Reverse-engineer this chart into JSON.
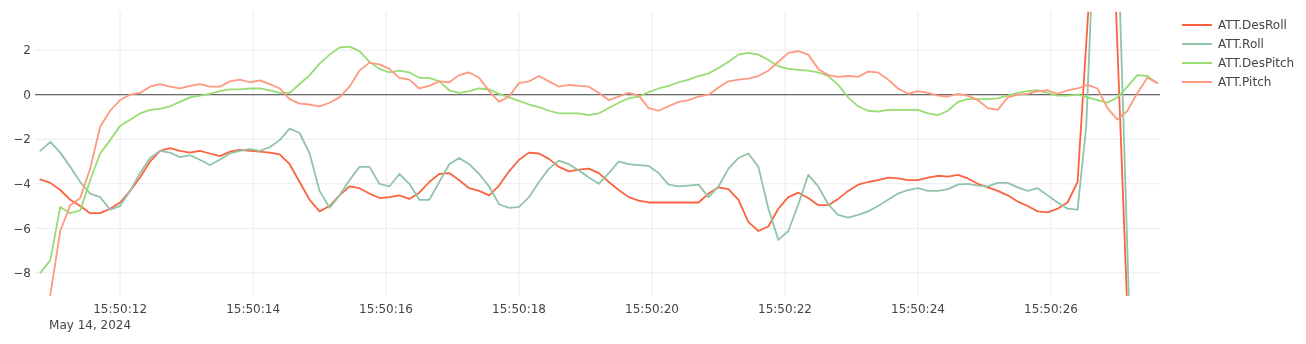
{
  "chart_data": {
    "type": "line",
    "x": [
      "2024-05-14T15:50:10.80",
      "2024-05-14T15:50:10.95",
      "2024-05-14T15:50:11.10",
      "2024-05-14T15:50:11.25",
      "2024-05-14T15:50:11.40",
      "2024-05-14T15:50:11.55",
      "2024-05-14T15:50:11.70",
      "2024-05-14T15:50:11.85",
      "2024-05-14T15:50:12.00",
      "2024-05-14T15:50:12.15",
      "2024-05-14T15:50:12.30",
      "2024-05-14T15:50:12.45",
      "2024-05-14T15:50:12.60",
      "2024-05-14T15:50:12.75",
      "2024-05-14T15:50:12.90",
      "2024-05-14T15:50:13.05",
      "2024-05-14T15:50:13.20",
      "2024-05-14T15:50:13.35",
      "2024-05-14T15:50:13.50",
      "2024-05-14T15:50:13.65",
      "2024-05-14T15:50:13.80",
      "2024-05-14T15:50:13.95",
      "2024-05-14T15:50:14.10",
      "2024-05-14T15:50:14.25",
      "2024-05-14T15:50:14.40",
      "2024-05-14T15:50:14.55",
      "2024-05-14T15:50:14.70",
      "2024-05-14T15:50:14.85",
      "2024-05-14T15:50:15.00",
      "2024-05-14T15:50:15.15",
      "2024-05-14T15:50:15.30",
      "2024-05-14T15:50:15.45",
      "2024-05-14T15:50:15.60",
      "2024-05-14T15:50:15.75",
      "2024-05-14T15:50:15.90",
      "2024-05-14T15:50:16.05",
      "2024-05-14T15:50:16.20",
      "2024-05-14T15:50:16.35",
      "2024-05-14T15:50:16.50",
      "2024-05-14T15:50:16.65",
      "2024-05-14T15:50:16.80",
      "2024-05-14T15:50:16.95",
      "2024-05-14T15:50:17.10",
      "2024-05-14T15:50:17.25",
      "2024-05-14T15:50:17.40",
      "2024-05-14T15:50:17.55",
      "2024-05-14T15:50:17.70",
      "2024-05-14T15:50:17.85",
      "2024-05-14T15:50:18.00",
      "2024-05-14T15:50:18.15",
      "2024-05-14T15:50:18.30",
      "2024-05-14T15:50:18.45",
      "2024-05-14T15:50:18.60",
      "2024-05-14T15:50:18.75",
      "2024-05-14T15:50:18.90",
      "2024-05-14T15:50:19.05",
      "2024-05-14T15:50:19.20",
      "2024-05-14T15:50:19.35",
      "2024-05-14T15:50:19.50",
      "2024-05-14T15:50:19.65",
      "2024-05-14T15:50:19.80",
      "2024-05-14T15:50:19.95",
      "2024-05-14T15:50:20.10",
      "2024-05-14T15:50:20.25",
      "2024-05-14T15:50:20.40",
      "2024-05-14T15:50:20.55",
      "2024-05-14T15:50:20.70",
      "2024-05-14T15:50:20.85",
      "2024-05-14T15:50:21.00",
      "2024-05-14T15:50:21.15",
      "2024-05-14T15:50:21.30",
      "2024-05-14T15:50:21.45",
      "2024-05-14T15:50:21.60",
      "2024-05-14T15:50:21.75",
      "2024-05-14T15:50:21.90",
      "2024-05-14T15:50:22.05",
      "2024-05-14T15:50:22.20",
      "2024-05-14T15:50:22.35",
      "2024-05-14T15:50:22.50",
      "2024-05-14T15:50:22.65",
      "2024-05-14T15:50:22.80",
      "2024-05-14T15:50:22.95",
      "2024-05-14T15:50:23.10",
      "2024-05-14T15:50:23.25",
      "2024-05-14T15:50:23.40",
      "2024-05-14T15:50:23.55",
      "2024-05-14T15:50:23.70",
      "2024-05-14T15:50:23.85",
      "2024-05-14T15:50:24.00",
      "2024-05-14T15:50:24.15",
      "2024-05-14T15:50:24.30",
      "2024-05-14T15:50:24.45",
      "2024-05-14T15:50:24.60",
      "2024-05-14T15:50:24.75",
      "2024-05-14T15:50:24.90",
      "2024-05-14T15:50:25.05",
      "2024-05-14T15:50:25.20",
      "2024-05-14T15:50:25.35",
      "2024-05-14T15:50:25.50",
      "2024-05-14T15:50:25.65",
      "2024-05-14T15:50:25.80",
      "2024-05-14T15:50:25.95",
      "2024-05-14T15:50:26.10",
      "2024-05-14T15:50:26.25",
      "2024-05-14T15:50:26.40",
      "2024-05-14T15:50:26.55",
      "2024-05-14T15:50:26.70",
      "2024-05-14T15:50:26.85",
      "2024-05-14T15:50:27.00",
      "2024-05-14T15:50:27.15",
      "2024-05-14T15:50:27.30",
      "2024-05-14T15:50:27.45",
      "2024-05-14T15:50:27.60"
    ],
    "series": [
      {
        "name": "ATT.DesRoll",
        "color": "#fb6340",
        "x": [
          "2024-05-14T15:50:10.80",
          "2024-05-14T15:50:10.95",
          "2024-05-14T15:50:11.10",
          "2024-05-14T15:50:11.25",
          "2024-05-14T15:50:11.40",
          "2024-05-14T15:50:11.55",
          "2024-05-14T15:50:11.70",
          "2024-05-14T15:50:11.85",
          "2024-05-14T15:50:12.00",
          "2024-05-14T15:50:12.15",
          "2024-05-14T15:50:12.30",
          "2024-05-14T15:50:12.45",
          "2024-05-14T15:50:12.60",
          "2024-05-14T15:50:12.75",
          "2024-05-14T15:50:12.90",
          "2024-05-14T15:50:13.05",
          "2024-05-14T15:50:13.20",
          "2024-05-14T15:50:13.35",
          "2024-05-14T15:50:13.50",
          "2024-05-14T15:50:13.65",
          "2024-05-14T15:50:13.80",
          "2024-05-14T15:50:13.95",
          "2024-05-14T15:50:14.10",
          "2024-05-14T15:50:14.25",
          "2024-05-14T15:50:14.40",
          "2024-05-14T15:50:14.55",
          "2024-05-14T15:50:14.70",
          "2024-05-14T15:50:14.85",
          "2024-05-14T15:50:15.00",
          "2024-05-14T15:50:15.15",
          "2024-05-14T15:50:15.30",
          "2024-05-14T15:50:15.45",
          "2024-05-14T15:50:15.60",
          "2024-05-14T15:50:15.75",
          "2024-05-14T15:50:15.90",
          "2024-05-14T15:50:16.05",
          "2024-05-14T15:50:16.20",
          "2024-05-14T15:50:16.35",
          "2024-05-14T15:50:16.50",
          "2024-05-14T15:50:16.65",
          "2024-05-14T15:50:16.80",
          "2024-05-14T15:50:16.95",
          "2024-05-14T15:50:17.10",
          "2024-05-14T15:50:17.25",
          "2024-05-14T15:50:17.40",
          "2024-05-14T15:50:17.55",
          "2024-05-14T15:50:17.70",
          "2024-05-14T15:50:17.85",
          "2024-05-14T15:50:18.00",
          "2024-05-14T15:50:18.15",
          "2024-05-14T15:50:18.30",
          "2024-05-14T15:50:18.45",
          "2024-05-14T15:50:18.60",
          "2024-05-14T15:50:18.75",
          "2024-05-14T15:50:18.90",
          "2024-05-14T15:50:19.05",
          "2024-05-14T15:50:19.20",
          "2024-05-14T15:50:19.35",
          "2024-05-14T15:50:19.50",
          "2024-05-14T15:50:19.65",
          "2024-05-14T15:50:19.80",
          "2024-05-14T15:50:19.95",
          "2024-05-14T15:50:20.10",
          "2024-05-14T15:50:20.25",
          "2024-05-14T15:50:20.40",
          "2024-05-14T15:50:20.55",
          "2024-05-14T15:50:20.70",
          "2024-05-14T15:50:20.85",
          "2024-05-14T15:50:21.00",
          "2024-05-14T15:50:21.15",
          "2024-05-14T15:50:21.30",
          "2024-05-14T15:50:21.45",
          "2024-05-14T15:50:21.60",
          "2024-05-14T15:50:21.75",
          "2024-05-14T15:50:21.90",
          "2024-05-14T15:50:22.05",
          "2024-05-14T15:50:22.20",
          "2024-05-14T15:50:22.35",
          "2024-05-14T15:50:22.50",
          "2024-05-14T15:50:22.65",
          "2024-05-14T15:50:22.80",
          "2024-05-14T15:50:22.95",
          "2024-05-14T15:50:23.10",
          "2024-05-14T15:50:23.25",
          "2024-05-14T15:50:23.40",
          "2024-05-14T15:50:23.55",
          "2024-05-14T15:50:23.70",
          "2024-05-14T15:50:23.85",
          "2024-05-14T15:50:24.00",
          "2024-05-14T15:50:24.15",
          "2024-05-14T15:50:24.30",
          "2024-05-14T15:50:24.45",
          "2024-05-14T15:50:24.60",
          "2024-05-14T15:50:24.75",
          "2024-05-14T15:50:24.90",
          "2024-05-14T15:50:25.05",
          "2024-05-14T15:50:25.20",
          "2024-05-14T15:50:25.35",
          "2024-05-14T15:50:25.50",
          "2024-05-14T15:50:25.65",
          "2024-05-14T15:50:25.80",
          "2024-05-14T15:50:25.95",
          "2024-05-14T15:50:26.10",
          "2024-05-14T15:50:26.25",
          "2024-05-14T15:50:26.40",
          "2024-05-14T15:50:26.56",
          "2024-05-14T15:50:26.74",
          "2024-05-14T15:50:26.98",
          "2024-05-14T15:50:27.14"
        ],
        "values": [
          -3.8,
          -3.96,
          -4.28,
          -4.72,
          -5.0,
          -5.32,
          -5.32,
          -5.12,
          -4.84,
          -4.32,
          -3.72,
          -3.0,
          -2.52,
          -2.4,
          -2.52,
          -2.6,
          -2.52,
          -2.64,
          -2.76,
          -2.56,
          -2.48,
          -2.52,
          -2.56,
          -2.6,
          -2.68,
          -3.12,
          -3.92,
          -4.72,
          -5.24,
          -5.0,
          -4.52,
          -4.12,
          -4.2,
          -4.44,
          -4.64,
          -4.6,
          -4.52,
          -4.68,
          -4.4,
          -3.92,
          -3.56,
          -3.52,
          -3.84,
          -4.2,
          -4.32,
          -4.52,
          -4.08,
          -3.44,
          -2.92,
          -2.6,
          -2.64,
          -2.88,
          -3.24,
          -3.44,
          -3.36,
          -3.32,
          -3.52,
          -3.92,
          -4.28,
          -4.6,
          -4.76,
          -4.84,
          -4.84,
          -4.84,
          -4.84,
          -4.84,
          -4.84,
          -4.44,
          -4.16,
          -4.24,
          -4.72,
          -5.72,
          -6.12,
          -5.92,
          -5.12,
          -4.6,
          -4.4,
          -4.64,
          -4.96,
          -4.96,
          -4.68,
          -4.32,
          -4.04,
          -3.92,
          -3.84,
          -3.72,
          -3.76,
          -3.84,
          -3.84,
          -3.72,
          -3.64,
          -3.68,
          -3.6,
          -3.76,
          -4.0,
          -4.16,
          -4.32,
          -4.52,
          -4.8,
          -5.0,
          -5.24,
          -5.28,
          -5.12,
          -4.84,
          -3.92,
          3.7,
          null,
          3.7,
          -9.0
        ]
      },
      {
        "name": "ATT.Roll",
        "color": "#91c4a9",
        "x": [
          "2024-05-14T15:50:10.80",
          "2024-05-14T15:50:10.95",
          "2024-05-14T15:50:11.10",
          "2024-05-14T15:50:11.25",
          "2024-05-14T15:50:11.40",
          "2024-05-14T15:50:11.55",
          "2024-05-14T15:50:11.70",
          "2024-05-14T15:50:11.85",
          "2024-05-14T15:50:12.00",
          "2024-05-14T15:50:12.15",
          "2024-05-14T15:50:12.30",
          "2024-05-14T15:50:12.45",
          "2024-05-14T15:50:12.60",
          "2024-05-14T15:50:12.75",
          "2024-05-14T15:50:12.90",
          "2024-05-14T15:50:13.05",
          "2024-05-14T15:50:13.20",
          "2024-05-14T15:50:13.35",
          "2024-05-14T15:50:13.50",
          "2024-05-14T15:50:13.65",
          "2024-05-14T15:50:13.80",
          "2024-05-14T15:50:13.95",
          "2024-05-14T15:50:14.10",
          "2024-05-14T15:50:14.25",
          "2024-05-14T15:50:14.40",
          "2024-05-14T15:50:14.55",
          "2024-05-14T15:50:14.70",
          "2024-05-14T15:50:14.85",
          "2024-05-14T15:50:15.00",
          "2024-05-14T15:50:15.15",
          "2024-05-14T15:50:15.30",
          "2024-05-14T15:50:15.45",
          "2024-05-14T15:50:15.60",
          "2024-05-14T15:50:15.75",
          "2024-05-14T15:50:15.90",
          "2024-05-14T15:50:16.05",
          "2024-05-14T15:50:16.20",
          "2024-05-14T15:50:16.35",
          "2024-05-14T15:50:16.50",
          "2024-05-14T15:50:16.65",
          "2024-05-14T15:50:16.80",
          "2024-05-14T15:50:16.95",
          "2024-05-14T15:50:17.10",
          "2024-05-14T15:50:17.25",
          "2024-05-14T15:50:17.40",
          "2024-05-14T15:50:17.55",
          "2024-05-14T15:50:17.70",
          "2024-05-14T15:50:17.85",
          "2024-05-14T15:50:18.00",
          "2024-05-14T15:50:18.15",
          "2024-05-14T15:50:18.30",
          "2024-05-14T15:50:18.45",
          "2024-05-14T15:50:18.60",
          "2024-05-14T15:50:18.75",
          "2024-05-14T15:50:18.90",
          "2024-05-14T15:50:19.05",
          "2024-05-14T15:50:19.20",
          "2024-05-14T15:50:19.35",
          "2024-05-14T15:50:19.50",
          "2024-05-14T15:50:19.65",
          "2024-05-14T15:50:19.80",
          "2024-05-14T15:50:19.95",
          "2024-05-14T15:50:20.10",
          "2024-05-14T15:50:20.25",
          "2024-05-14T15:50:20.40",
          "2024-05-14T15:50:20.55",
          "2024-05-14T15:50:20.70",
          "2024-05-14T15:50:20.85",
          "2024-05-14T15:50:21.00",
          "2024-05-14T15:50:21.15",
          "2024-05-14T15:50:21.30",
          "2024-05-14T15:50:21.45",
          "2024-05-14T15:50:21.60",
          "2024-05-14T15:50:21.75",
          "2024-05-14T15:50:21.90",
          "2024-05-14T15:50:22.05",
          "2024-05-14T15:50:22.20",
          "2024-05-14T15:50:22.35",
          "2024-05-14T15:50:22.50",
          "2024-05-14T15:50:22.65",
          "2024-05-14T15:50:22.80",
          "2024-05-14T15:50:22.95",
          "2024-05-14T15:50:23.10",
          "2024-05-14T15:50:23.25",
          "2024-05-14T15:50:23.40",
          "2024-05-14T15:50:23.55",
          "2024-05-14T15:50:23.70",
          "2024-05-14T15:50:23.85",
          "2024-05-14T15:50:24.00",
          "2024-05-14T15:50:24.15",
          "2024-05-14T15:50:24.30",
          "2024-05-14T15:50:24.45",
          "2024-05-14T15:50:24.60",
          "2024-05-14T15:50:24.75",
          "2024-05-14T15:50:24.90",
          "2024-05-14T15:50:25.05",
          "2024-05-14T15:50:25.20",
          "2024-05-14T15:50:25.35",
          "2024-05-14T15:50:25.50",
          "2024-05-14T15:50:25.65",
          "2024-05-14T15:50:25.80",
          "2024-05-14T15:50:25.95",
          "2024-05-14T15:50:26.10",
          "2024-05-14T15:50:26.25",
          "2024-05-14T15:50:26.40",
          "2024-05-14T15:50:26.53",
          "2024-05-14T15:50:26.60",
          "2024-05-14T15:50:26.74",
          "2024-05-14T15:50:27.04",
          "2024-05-14T15:50:27.17"
        ],
        "values": [
          -2.52,
          -2.12,
          -2.6,
          -3.24,
          -3.92,
          -4.44,
          -4.6,
          -5.16,
          -5.0,
          -4.32,
          -3.52,
          -2.84,
          -2.52,
          -2.6,
          -2.8,
          -2.72,
          -2.92,
          -3.16,
          -2.92,
          -2.64,
          -2.52,
          -2.44,
          -2.52,
          -2.36,
          -2.04,
          -1.52,
          -1.72,
          -2.64,
          -4.32,
          -5.08,
          -4.52,
          -3.84,
          -3.24,
          -3.24,
          -4.0,
          -4.12,
          -3.56,
          -4.0,
          -4.72,
          -4.72,
          -3.92,
          -3.12,
          -2.84,
          -3.12,
          -3.56,
          -4.12,
          -4.92,
          -5.08,
          -5.04,
          -4.6,
          -3.92,
          -3.32,
          -2.96,
          -3.12,
          -3.4,
          -3.72,
          -4.0,
          -3.52,
          -3.0,
          -3.12,
          -3.16,
          -3.2,
          -3.52,
          -4.04,
          -4.12,
          -4.08,
          -4.04,
          -4.6,
          -4.12,
          -3.32,
          -2.84,
          -2.64,
          -3.24,
          -5.12,
          -6.52,
          -6.12,
          -4.92,
          -3.6,
          -4.12,
          -4.92,
          -5.4,
          -5.52,
          -5.4,
          -5.24,
          -5.0,
          -4.72,
          -4.44,
          -4.28,
          -4.2,
          -4.32,
          -4.32,
          -4.24,
          -4.04,
          -4.0,
          -4.08,
          -4.12,
          -3.96,
          -3.96,
          -4.16,
          -4.32,
          -4.2,
          -4.52,
          -4.84,
          -5.12,
          -5.16,
          -1.44,
          3.7,
          null,
          3.7,
          -9.0
        ]
      },
      {
        "name": "ATT.DesPitch",
        "color": "#98dc74",
        "values": [
          -8.0,
          -7.44,
          -5.04,
          -5.32,
          -5.2,
          -3.84,
          -2.64,
          -2.04,
          -1.4,
          -1.12,
          -0.84,
          -0.68,
          -0.64,
          -0.52,
          -0.32,
          -0.12,
          -0.04,
          0.04,
          0.16,
          0.24,
          0.24,
          0.28,
          0.28,
          0.2,
          0.08,
          0.08,
          0.48,
          0.88,
          1.4,
          1.8,
          2.12,
          2.16,
          1.96,
          1.48,
          1.16,
          1.0,
          1.08,
          1.0,
          0.76,
          0.76,
          0.6,
          0.2,
          0.08,
          0.16,
          0.28,
          0.24,
          0.04,
          -0.12,
          -0.28,
          -0.44,
          -0.56,
          -0.72,
          -0.84,
          -0.84,
          -0.84,
          -0.92,
          -0.84,
          -0.6,
          -0.36,
          -0.16,
          -0.08,
          0.12,
          0.28,
          0.4,
          0.56,
          0.68,
          0.84,
          0.96,
          1.2,
          1.48,
          1.8,
          1.88,
          1.8,
          1.56,
          1.28,
          1.16,
          1.12,
          1.08,
          1.0,
          0.84,
          0.44,
          -0.12,
          -0.52,
          -0.72,
          -0.76,
          -0.68,
          -0.68,
          -0.68,
          -0.68,
          -0.84,
          -0.92,
          -0.72,
          -0.32,
          -0.2,
          -0.2,
          -0.2,
          -0.16,
          -0.04,
          0.08,
          0.16,
          0.2,
          0.08,
          -0.04,
          -0.04,
          0.0,
          -0.12,
          -0.24,
          -0.36,
          -0.12,
          0.36,
          0.88,
          0.84,
          0.52
        ]
      },
      {
        "name": "ATT.Pitch",
        "color": "#fd9a80",
        "values": [
          null,
          -9.0,
          -6.12,
          -4.96,
          -4.64,
          -3.32,
          -1.44,
          -0.72,
          -0.24,
          0.0,
          0.08,
          0.36,
          0.48,
          0.36,
          0.28,
          0.4,
          0.48,
          0.36,
          0.36,
          0.6,
          0.68,
          0.56,
          0.64,
          0.48,
          0.28,
          -0.2,
          -0.4,
          -0.44,
          -0.52,
          -0.36,
          -0.12,
          0.36,
          1.08,
          1.44,
          1.36,
          1.16,
          0.76,
          0.68,
          0.28,
          0.4,
          0.6,
          0.56,
          0.88,
          1.0,
          0.76,
          0.16,
          -0.32,
          -0.08,
          0.52,
          0.6,
          0.84,
          0.6,
          0.36,
          0.44,
          0.4,
          0.36,
          0.08,
          -0.24,
          -0.08,
          0.08,
          -0.04,
          -0.6,
          -0.72,
          -0.52,
          -0.32,
          -0.24,
          -0.08,
          0.0,
          0.32,
          0.6,
          0.68,
          0.72,
          0.84,
          1.08,
          1.48,
          1.88,
          1.96,
          1.8,
          1.16,
          0.88,
          0.8,
          0.84,
          0.8,
          1.04,
          1.0,
          0.68,
          0.28,
          0.04,
          0.16,
          0.08,
          -0.04,
          -0.08,
          0.04,
          -0.04,
          -0.24,
          -0.6,
          -0.68,
          -0.12,
          0.0,
          0.04,
          0.16,
          0.2,
          0.04,
          0.2,
          0.28,
          0.44,
          0.28,
          -0.6,
          -1.12,
          -0.72,
          0.08,
          0.76,
          0.52
        ]
      }
    ],
    "xlim": [
      "2024-05-14T15:50:10.72",
      "2024-05-14T15:50:27.64"
    ],
    "xticks": [
      {
        "value": "2024-05-14T15:50:12",
        "label": "15:50:12"
      },
      {
        "value": "2024-05-14T15:50:14",
        "label": "15:50:14"
      },
      {
        "value": "2024-05-14T15:50:16",
        "label": "15:50:16"
      },
      {
        "value": "2024-05-14T15:50:18",
        "label": "15:50:18"
      },
      {
        "value": "2024-05-14T15:50:20",
        "label": "15:50:20"
      },
      {
        "value": "2024-05-14T15:50:22",
        "label": "15:50:22"
      },
      {
        "value": "2024-05-14T15:50:24",
        "label": "15:50:24"
      },
      {
        "value": "2024-05-14T15:50:26",
        "label": "15:50:26"
      }
    ],
    "ylim": [
      -9.04,
      3.76
    ],
    "yticks": [
      {
        "value": -8,
        "label": "−8"
      },
      {
        "value": -6,
        "label": "−6"
      },
      {
        "value": -4,
        "label": "−4"
      },
      {
        "value": -2,
        "label": "−2"
      },
      0,
      2
    ],
    "ref_lines": [
      {
        "axis": "y",
        "value": 0,
        "color": "#444444"
      }
    ],
    "annotations": [
      "May 14, 2024"
    ],
    "grid": true,
    "legend": "top right"
  }
}
